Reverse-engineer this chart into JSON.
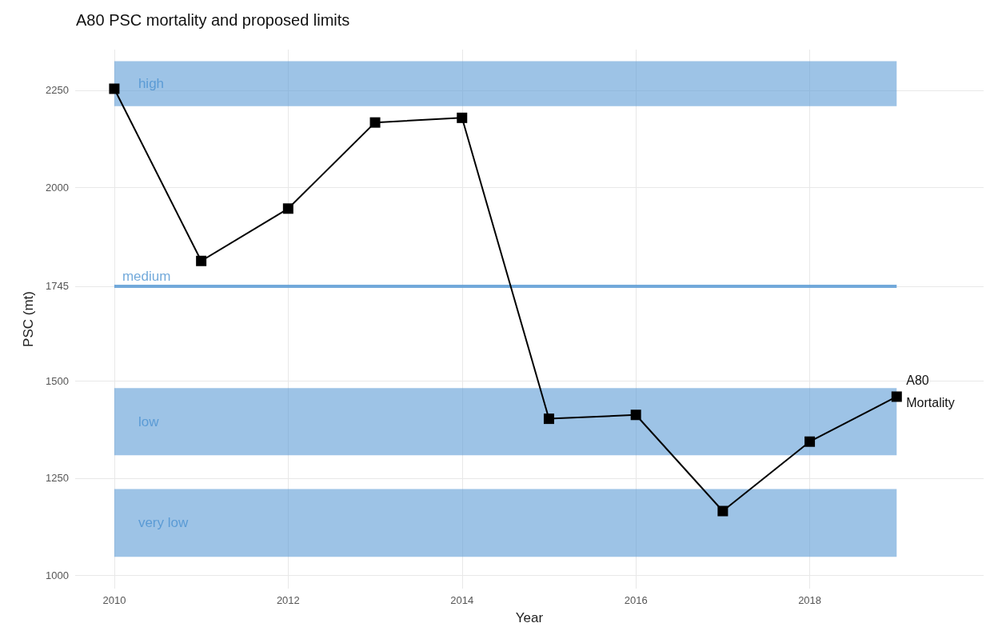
{
  "chart_data": {
    "type": "line",
    "title": "A80 PSC mortality and proposed limits",
    "xlabel": "Year",
    "ylabel": "PSC (mt)",
    "x": [
      2010,
      2011,
      2012,
      2013,
      2014,
      2015,
      2016,
      2017,
      2018,
      2019
    ],
    "series": [
      {
        "name": "A80 Mortality",
        "color": "#000000",
        "values": [
          2254,
          1810,
          1945,
          2167,
          2179,
          1403,
          1413,
          1165,
          1344,
          1460
        ]
      }
    ],
    "xlim": [
      2009.55,
      2020
    ],
    "xticks": [
      2010,
      2012,
      2014,
      2016,
      2018
    ],
    "ylim": [
      965,
      2355
    ],
    "yticks": [
      1000,
      1250,
      1500,
      1745,
      2000,
      2250
    ],
    "bands": [
      {
        "axis": "y",
        "from": 2209,
        "to": 2325,
        "label": "high",
        "color": "#5b9bd5"
      },
      {
        "axis": "y",
        "from": 1309,
        "to": 1482,
        "label": "low",
        "color": "#5b9bd5"
      },
      {
        "axis": "y",
        "from": 1047,
        "to": 1222,
        "label": "very low",
        "color": "#5b9bd5"
      }
    ],
    "ref_lines": [
      {
        "axis": "y",
        "value": 1745,
        "label": "medium",
        "color": "#5b9bd5"
      }
    ],
    "grid": true,
    "legend": false,
    "marker": "square",
    "line_style": "solid"
  }
}
